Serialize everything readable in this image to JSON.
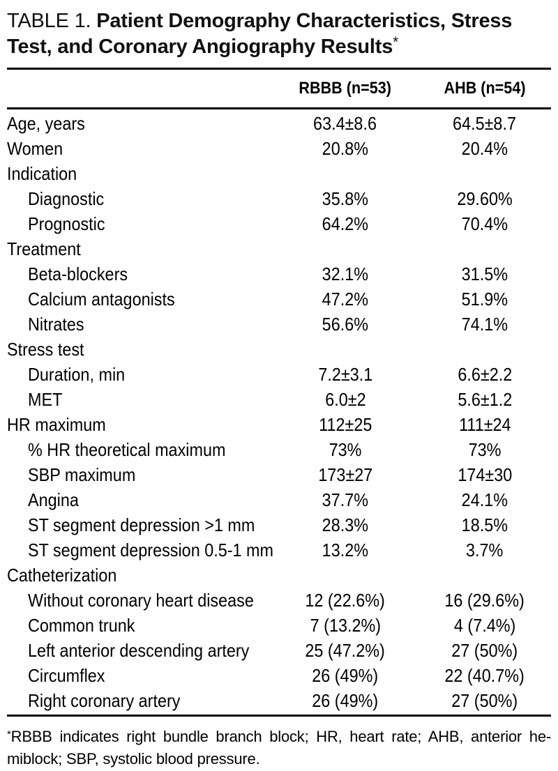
{
  "title": {
    "prefix": "TABLE 1.",
    "bold_part1": "Patient Demography Characteristics,",
    "bold_part2": "Stress Test, and Coronary Angiography Results",
    "footnote_marker": "*"
  },
  "columns": [
    "RBBB (n=53)",
    "AHB (n=54)"
  ],
  "rows": [
    {
      "label": "Age, years",
      "indent": 0,
      "rbbb": "63.4±8.6",
      "ahb": "64.5±8.7"
    },
    {
      "label": "Women",
      "indent": 0,
      "rbbb": "20.8%",
      "ahb": "20.4%"
    },
    {
      "label": "Indication",
      "indent": 0,
      "rbbb": "",
      "ahb": ""
    },
    {
      "label": "Diagnostic",
      "indent": 1,
      "rbbb": "35.8%",
      "ahb": "29.60%"
    },
    {
      "label": "Prognostic",
      "indent": 1,
      "rbbb": "64.2%",
      "ahb": "70.4%"
    },
    {
      "label": "Treatment",
      "indent": 0,
      "rbbb": "",
      "ahb": ""
    },
    {
      "label": "Beta-blockers",
      "indent": 1,
      "rbbb": "32.1%",
      "ahb": "31.5%"
    },
    {
      "label": "Calcium antagonists",
      "indent": 1,
      "rbbb": "47.2%",
      "ahb": "51.9%"
    },
    {
      "label": "Nitrates",
      "indent": 1,
      "rbbb": "56.6%",
      "ahb": "74.1%"
    },
    {
      "label": "Stress test",
      "indent": 0,
      "rbbb": "",
      "ahb": ""
    },
    {
      "label": "Duration, min",
      "indent": 1,
      "rbbb": "7.2±3.1",
      "ahb": "6.6±2.2"
    },
    {
      "label": "MET",
      "indent": 1,
      "rbbb": "6.0±2",
      "ahb": "5.6±1.2"
    },
    {
      "label": "HR maximum",
      "indent": 0,
      "rbbb": "112±25",
      "ahb": "111±24"
    },
    {
      "label": "% HR theoretical maximum",
      "indent": 1,
      "rbbb": "73%",
      "ahb": "73%"
    },
    {
      "label": "SBP maximum",
      "indent": 1,
      "rbbb": "173±27",
      "ahb": "174±30"
    },
    {
      "label": "Angina",
      "indent": 1,
      "rbbb": "37.7%",
      "ahb": "24.1%"
    },
    {
      "label": "ST segment depression >1 mm",
      "indent": 1,
      "rbbb": "28.3%",
      "ahb": "18.5%"
    },
    {
      "label": "ST segment depression 0.5-1 mm",
      "indent": 1,
      "rbbb": "13.2%",
      "ahb": "3.7%"
    },
    {
      "label": "Catheterization",
      "indent": 0,
      "rbbb": "",
      "ahb": ""
    },
    {
      "label": "Without coronary heart disease",
      "indent": 1,
      "rbbb": "12 (22.6%)",
      "ahb": "16 (29.6%)"
    },
    {
      "label": "Common trunk",
      "indent": 1,
      "rbbb": "7 (13.2%)",
      "ahb": "4 (7.4%)"
    },
    {
      "label": "Left anterior descending artery",
      "indent": 1,
      "rbbb": "25 (47.2%)",
      "ahb": "27 (50%)"
    },
    {
      "label": "Circumflex",
      "indent": 1,
      "rbbb": "26 (49%)",
      "ahb": "22 (40.7%)"
    },
    {
      "label": "Right coronary artery",
      "indent": 1,
      "rbbb": "26 (49%)",
      "ahb": "27 (50%)"
    }
  ],
  "footnote": {
    "marker": "*",
    "line1": "RBBB indicates right bundle branch block; HR, heart rate; AHB, anterior he-",
    "line2": "miblock; SBP, systolic blood pressure."
  }
}
